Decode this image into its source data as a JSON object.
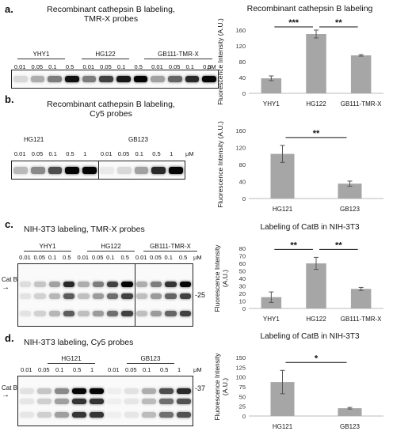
{
  "panels": {
    "a": {
      "label": "a.",
      "title_lines": [
        "Recombinant cathepsin B labeling,",
        "TMR-X probes"
      ],
      "groups": [
        "YHY1",
        "HG122",
        "GB111-TMR-X"
      ],
      "concentrations": [
        "0.01",
        "0.05",
        "0.1",
        "0.5",
        "0.01",
        "0.05",
        "0.1",
        "0.5",
        "0.01",
        "0.05",
        "0.1",
        "0.5"
      ],
      "unit": "µM",
      "band_intensity": [
        0.12,
        0.3,
        0.5,
        0.95,
        0.5,
        0.75,
        0.92,
        1.0,
        0.35,
        0.6,
        0.85,
        1.0
      ]
    },
    "b": {
      "label": "b.",
      "title_lines": [
        "Recombinant cathepsin B labeling,",
        "Cy5 probes"
      ],
      "groups": [
        "HG121",
        "GB123"
      ],
      "concentrations": [
        "0.01",
        "0.05",
        "0.1",
        "0.5",
        "1",
        "0.01",
        "0.05",
        "0.1",
        "0.5",
        "1"
      ],
      "unit": "µM",
      "band_intensity": [
        0.25,
        0.45,
        0.7,
        1.0,
        1.0,
        0.05,
        0.12,
        0.35,
        0.85,
        1.0
      ]
    },
    "c": {
      "label": "c.",
      "title": "NIH-3T3 labeling, TMR-X probes",
      "groups": [
        "YHY1",
        "HG122",
        "GB111-TMR-X"
      ],
      "concentrations": [
        "0.01",
        "0.05",
        "0.1",
        "0.5",
        "0.01",
        "0.05",
        "0.1",
        "0.5",
        "0.01",
        "0.05",
        "0.1",
        "0.5"
      ],
      "unit": "µM",
      "left_marker": "Cat B",
      "right_marker": "-25",
      "band_intensity": [
        0.1,
        0.2,
        0.35,
        0.85,
        0.3,
        0.5,
        0.75,
        1.0,
        0.3,
        0.5,
        0.8,
        1.0
      ]
    },
    "d": {
      "label": "d.",
      "title": "NIH-3T3 labeling, Cy5 probes",
      "groups": [
        "HG121",
        "GB123"
      ],
      "concentrations": [
        "0.01",
        "0.05",
        "0.1",
        "0.5",
        "1",
        "0.01",
        "0.05",
        "0.1",
        "0.5",
        "1"
      ],
      "unit": "µM",
      "left_marker": "Cat B",
      "right_marker": "-37",
      "band_intensity": [
        0.08,
        0.2,
        0.45,
        1.0,
        1.0,
        0.03,
        0.08,
        0.3,
        0.7,
        0.85
      ]
    }
  },
  "chart_data": [
    {
      "type": "bar",
      "title": "Recombinant cathepsin B labeling",
      "ylabel": "Fluorescence Intensity (A.U.)",
      "categories": [
        "YHY1",
        "HG122",
        "GB111-TMR-X"
      ],
      "values": [
        38,
        150,
        96
      ],
      "errors": [
        6,
        10,
        2
      ],
      "ylim": [
        0,
        160
      ],
      "yticks": [
        "0",
        "40",
        "80",
        "120",
        "160"
      ],
      "annotations": [
        {
          "from": 0,
          "to": 1,
          "label": "***"
        },
        {
          "from": 1,
          "to": 2,
          "label": "**"
        }
      ]
    },
    {
      "type": "bar",
      "title": "",
      "ylabel": "Fluorescence Intensity (A.U.)",
      "categories": [
        "HG121",
        "GB123"
      ],
      "values": [
        105,
        35
      ],
      "errors": [
        20,
        6
      ],
      "ylim": [
        0,
        160
      ],
      "yticks": [
        "0",
        "40",
        "80",
        "120",
        "160"
      ],
      "annotations": [
        {
          "from": 0,
          "to": 1,
          "label": "**"
        }
      ]
    },
    {
      "type": "bar",
      "title": "Labeling of CatB in NIH-3T3",
      "ylabel": "Fluorescence Intensity (A.U.)",
      "categories": [
        "YHY1",
        "HG122",
        "GB111-TMR-X"
      ],
      "values": [
        15,
        60,
        26
      ],
      "errors": [
        7,
        8,
        2
      ],
      "ylim": [
        0,
        80
      ],
      "yticks": [
        "0",
        "10",
        "20",
        "30",
        "40",
        "50",
        "60",
        "70",
        "80"
      ],
      "annotations": [
        {
          "from": 0,
          "to": 1,
          "label": "**"
        },
        {
          "from": 1,
          "to": 2,
          "label": "**"
        }
      ]
    },
    {
      "type": "bar",
      "title": "Labeling of CatB in NIH-3T3",
      "ylabel": "Fluorescence Intensity (A.U.)",
      "categories": [
        "HG121",
        "GB123"
      ],
      "values": [
        87,
        20
      ],
      "errors": [
        30,
        2
      ],
      "ylim": [
        0,
        150
      ],
      "yticks": [
        "0",
        "25",
        "50",
        "75",
        "100",
        "125",
        "150"
      ],
      "annotations": [
        {
          "from": 0,
          "to": 1,
          "label": "*"
        }
      ]
    }
  ]
}
